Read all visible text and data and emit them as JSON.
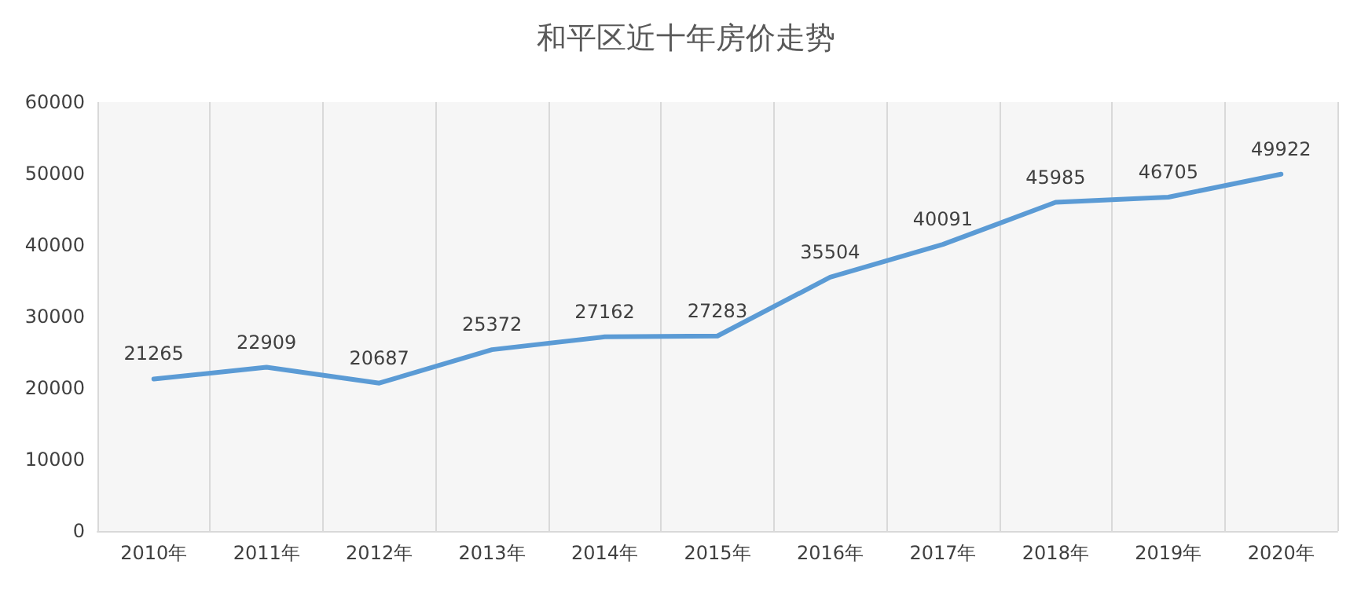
{
  "chart_data": {
    "type": "line",
    "title": "和平区近十年房价走势",
    "categories": [
      "2010年",
      "2011年",
      "2012年",
      "2013年",
      "2014年",
      "2015年",
      "2016年",
      "2017年",
      "2018年",
      "2019年",
      "2020年"
    ],
    "series": [
      {
        "color": "#5b9bd5",
        "values": [
          21265,
          22909,
          20687,
          25372,
          27162,
          27283,
          35504,
          40091,
          45985,
          46705,
          49922
        ]
      }
    ],
    "ylim": [
      0,
      60000
    ],
    "yticks": [
      0,
      10000,
      20000,
      30000,
      40000,
      50000,
      60000
    ],
    "grid": "x",
    "marker": "none",
    "line_style": "solid",
    "data_labels": true
  }
}
